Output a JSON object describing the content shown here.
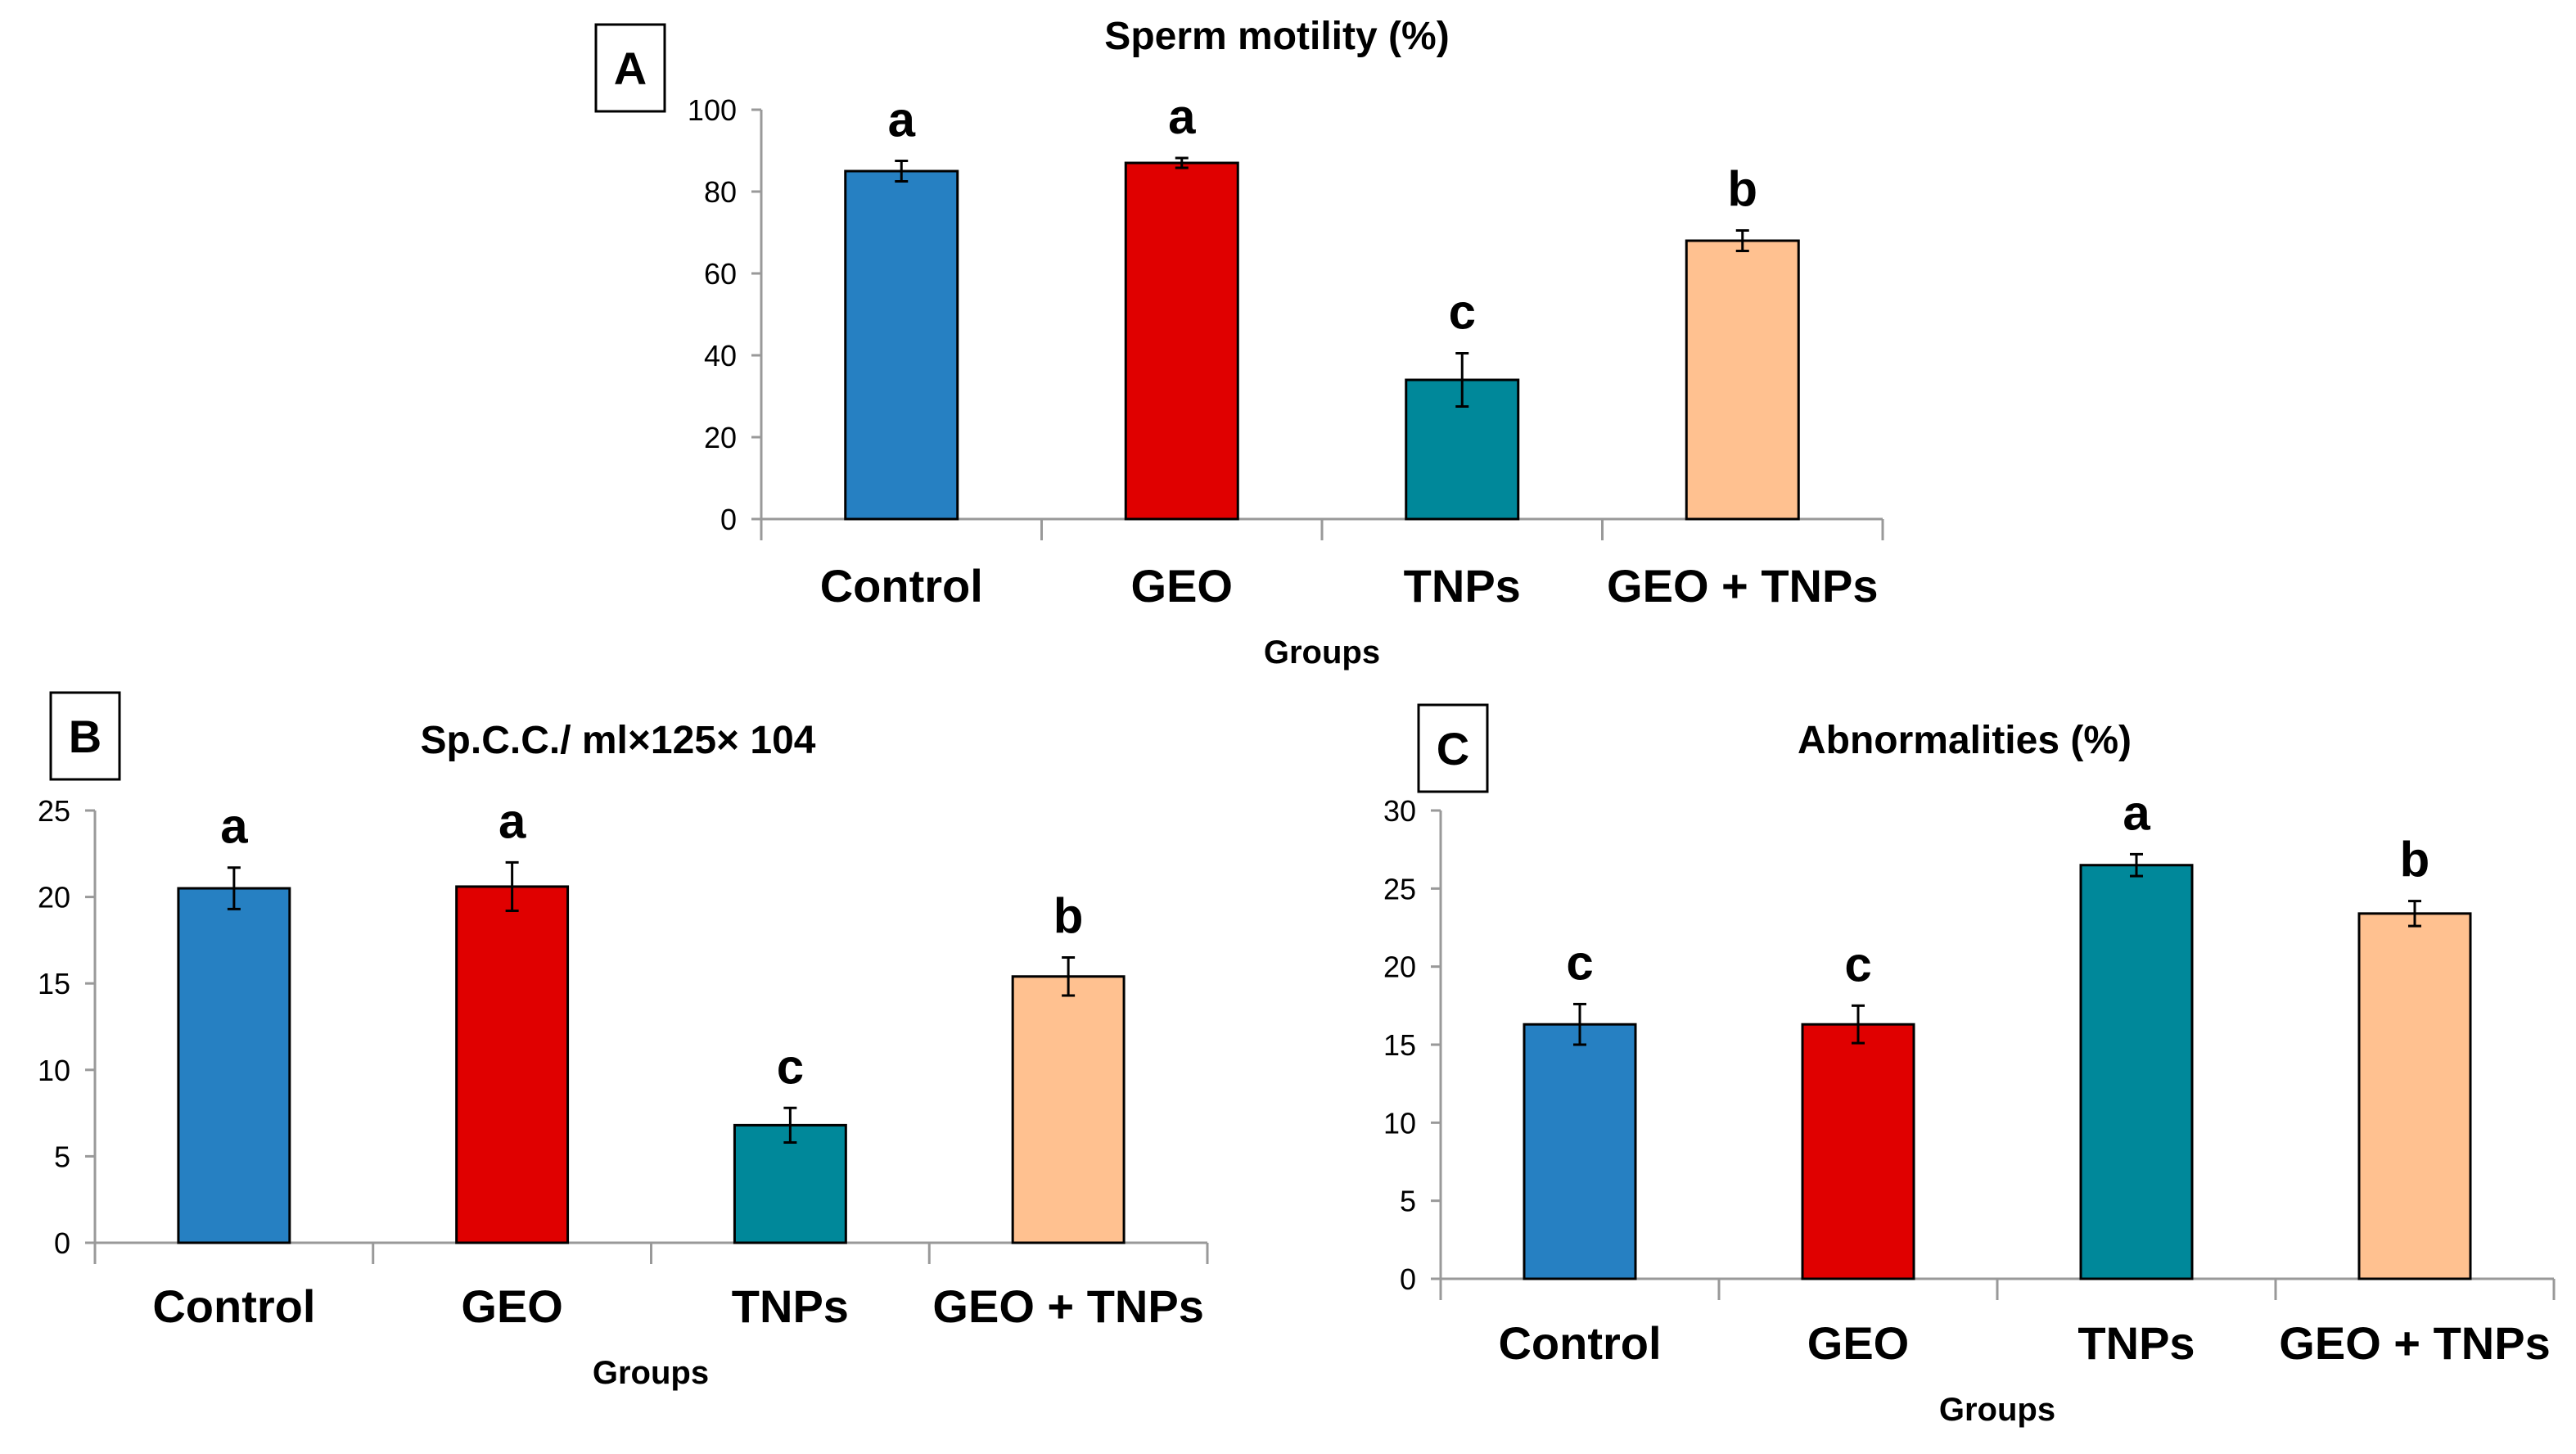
{
  "chart_data": [
    {
      "panel": "A",
      "type": "bar",
      "title": "Sperm motility (%)",
      "xlabel": "Groups",
      "ylabel": "",
      "categories": [
        "Control",
        "GEO",
        "TNPs",
        "GEO + TNPs"
      ],
      "values": [
        85,
        87,
        34,
        68
      ],
      "errors": [
        2.5,
        1.2,
        6.5,
        2.5
      ],
      "letters": [
        "a",
        "a",
        "c",
        "b"
      ],
      "ylim": [
        0,
        100
      ],
      "yticks": [
        0,
        20,
        40,
        60,
        80,
        100
      ]
    },
    {
      "panel": "B",
      "type": "bar",
      "title": "Sp.C.C./ ml×125× 104",
      "xlabel": "Groups",
      "ylabel": "",
      "categories": [
        "Control",
        "GEO",
        "TNPs",
        "GEO + TNPs"
      ],
      "values": [
        20.5,
        20.6,
        6.8,
        15.4
      ],
      "errors": [
        1.2,
        1.4,
        1.0,
        1.1
      ],
      "letters": [
        "a",
        "a",
        "c",
        "b"
      ],
      "ylim": [
        0,
        25
      ],
      "yticks": [
        0,
        5,
        10,
        15,
        20,
        25
      ]
    },
    {
      "panel": "C",
      "type": "bar",
      "title": "Abnormalities (%)",
      "xlabel": "Groups",
      "ylabel": "",
      "categories": [
        "Control",
        "GEO",
        "TNPs",
        "GEO + TNPs"
      ],
      "values": [
        16.3,
        16.3,
        26.5,
        23.4
      ],
      "errors": [
        1.3,
        1.2,
        0.7,
        0.8
      ],
      "letters": [
        "c",
        "c",
        "a",
        "b"
      ],
      "ylim": [
        0,
        30
      ],
      "yticks": [
        0,
        5,
        10,
        15,
        20,
        25,
        30
      ]
    }
  ],
  "colors": [
    "#2680c2",
    "#e00000",
    "#00889a",
    "#ffc190"
  ]
}
